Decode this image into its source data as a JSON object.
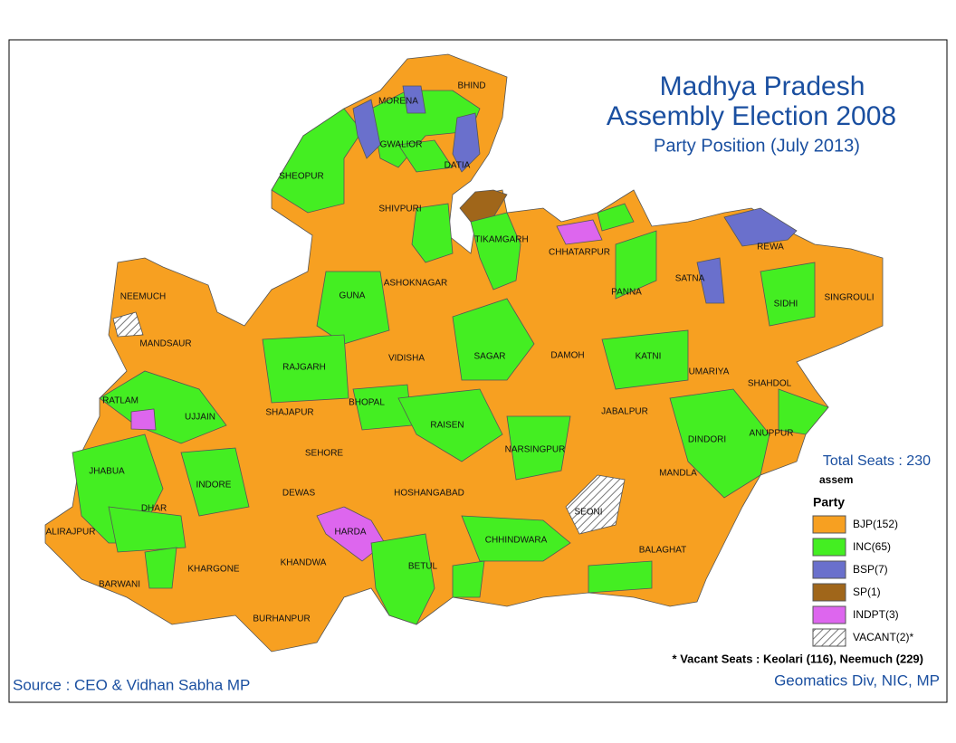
{
  "header": {
    "title_line1": "Madhya Pradesh",
    "title_line2": "Assembly Election 2008",
    "subtitle": "Party Position (July 2013)"
  },
  "total_seats": "Total Seats : 230",
  "legend": {
    "layer": "assem",
    "title": "Party",
    "items": [
      {
        "label": "BJP(152)",
        "color": "#f7a021"
      },
      {
        "label": "INC(65)",
        "color": "#44ee22"
      },
      {
        "label": "BSP(7)",
        "color": "#6a70cc"
      },
      {
        "label": "SP(1)",
        "color": "#a0661a"
      },
      {
        "label": "INDPT(3)",
        "color": "#dd66ee"
      },
      {
        "label": "VACANT(2)*",
        "color": "hatch"
      }
    ]
  },
  "vacant_note": "* Vacant Seats : Keolari (116), Neemuch (229)",
  "source": "Source : CEO & Vidhan Sabha MP",
  "credit": "Geomatics Div, NIC, MP",
  "districts": [
    "BHIND",
    "MORENA",
    "GWALIOR",
    "DATIA",
    "SHEOPUR",
    "SHIVPURI",
    "TIKAMGARH",
    "CHHATARPUR",
    "PANNA",
    "SATNA",
    "REWA",
    "SIDHI",
    "SINGROULI",
    "NEEMUCH",
    "MANDSAUR",
    "GUNA",
    "ASHOKNAGAR",
    "RAJGARH",
    "VIDISHA",
    "SAGAR",
    "DAMOH",
    "KATNI",
    "UMARIYA",
    "SHAHDOL",
    "ANUPPUR",
    "DINDORI",
    "JABALPUR",
    "RATLAM",
    "UJJAIN",
    "SHAJAPUR",
    "BHOPAL",
    "RAISEN",
    "SEHORE",
    "NARSINGPUR",
    "JHABUA",
    "INDORE",
    "DEWAS",
    "HOSHANGABAD",
    "MANDLA",
    "SEONI",
    "ALIRAJPUR",
    "DHAR",
    "HARDA",
    "CHHINDWARA",
    "BALAGHAT",
    "KHANDWA",
    "BETUL",
    "KHARGONE",
    "BARWANI",
    "BURHANPUR"
  ]
}
